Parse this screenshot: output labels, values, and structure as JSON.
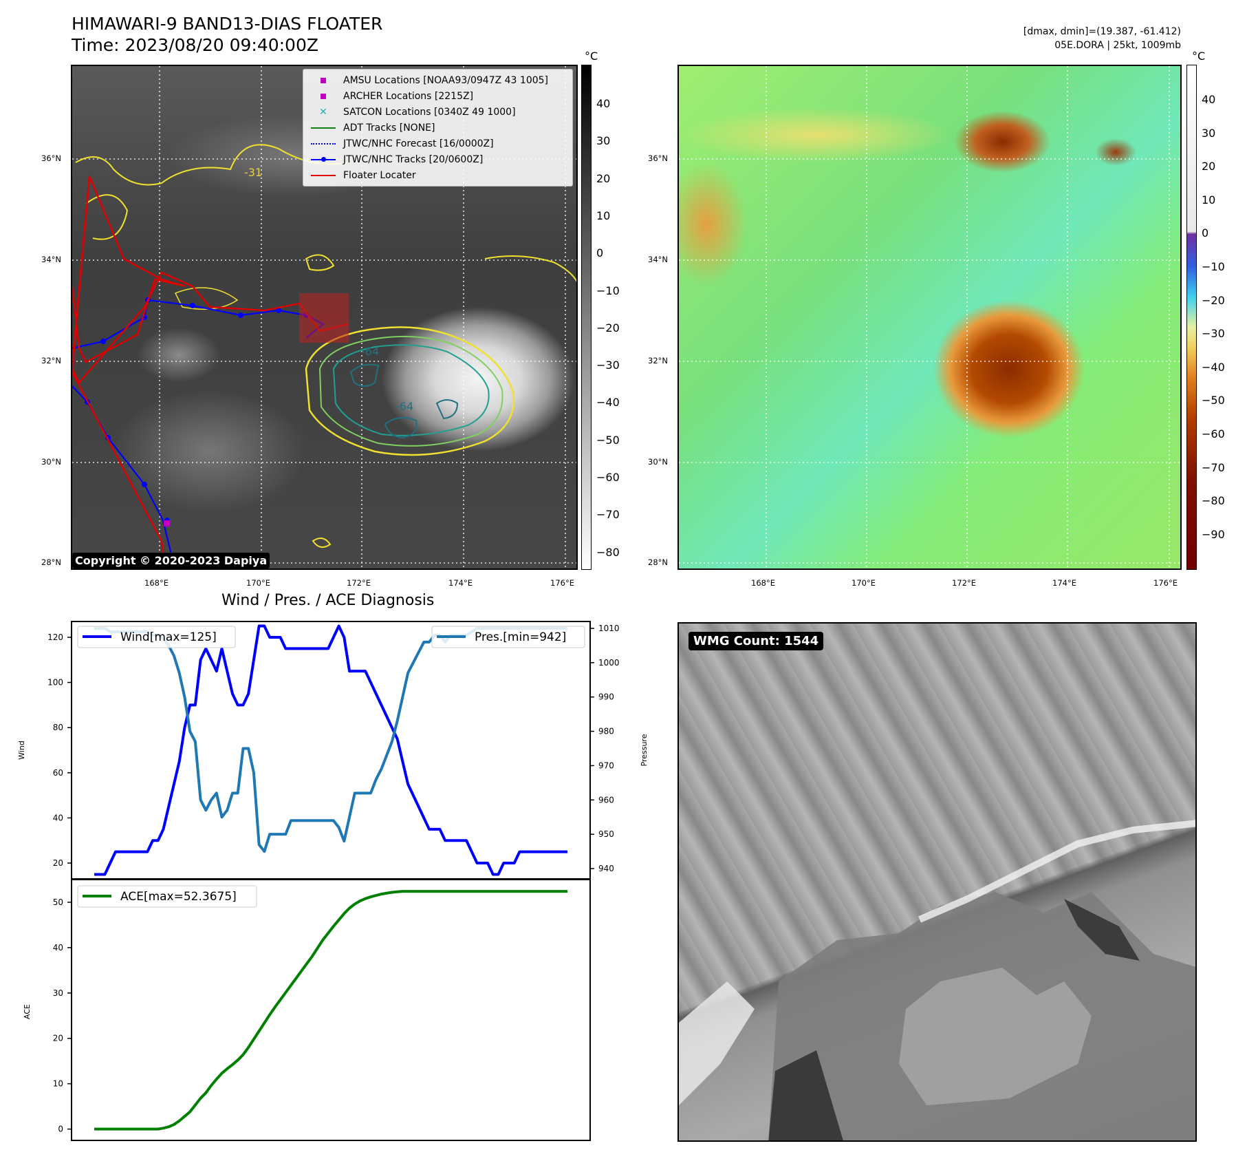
{
  "header": {
    "title": "HIMAWARI-9 BAND13-DIAS FLOATER",
    "time": "Time: 2023/08/20 09:40:00Z",
    "stats": "[dmax, dmin]=(19.387, -61.412)",
    "storm": "05E.DORA | 25kt, 1009mb"
  },
  "maps": {
    "lon_ticks": [
      "168°E",
      "170°E",
      "172°E",
      "174°E",
      "176°E"
    ],
    "lat_ticks": [
      "36°N",
      "34°N",
      "32°N",
      "30°N",
      "28°N"
    ],
    "copyright": "Copyright © 2020-2023 Dapiya",
    "legend": [
      {
        "label": "AMSU Locations [NOAA93/0947Z 43 1005]",
        "color": "#c000c0",
        "marker": "square"
      },
      {
        "label": "ARCHER Locations [2215Z]",
        "color": "#c000c0",
        "marker": "square"
      },
      {
        "label": "SATCON Locations [0340Z 49 1000]",
        "color": "#20b0b0",
        "marker": "x"
      },
      {
        "label": "ADT Tracks [NONE]",
        "color": "#108010",
        "marker": "line"
      },
      {
        "label": "JTWC/NHC Forecast [16/0000Z]",
        "color": "#0000ff",
        "marker": "dotted"
      },
      {
        "label": "JTWC/NHC Tracks [20/0600Z]",
        "color": "#0000ff",
        "marker": "line-dot"
      },
      {
        "label": "Floater Locater",
        "color": "#e00000",
        "marker": "line"
      }
    ],
    "contour_labels": [
      "-31",
      "-31",
      "-31",
      "-64",
      "-64"
    ],
    "colorbar_gray": {
      "unit": "°C",
      "ticks": [
        "40",
        "30",
        "20",
        "10",
        "0",
        "−10",
        "−20",
        "−30",
        "−40",
        "−50",
        "−60",
        "−70",
        "−80"
      ]
    },
    "colorbar_color": {
      "unit": "°C",
      "ticks": [
        "40",
        "30",
        "20",
        "10",
        "0",
        "−10",
        "−20",
        "−30",
        "−40",
        "−50",
        "−60",
        "−70",
        "−80",
        "−90"
      ]
    }
  },
  "diagnosis": {
    "title": "Wind / Pres. / ACE Diagnosis",
    "wmg_count": "WMG Count: 1544"
  },
  "chart_data": [
    {
      "type": "line",
      "title": "Wind / Pres. / ACE Diagnosis",
      "ylabel": "Wind",
      "y2label": "Pressure",
      "ylim": [
        13,
        127
      ],
      "y2lim": [
        937,
        1012
      ],
      "yticks": [
        "20",
        "40",
        "60",
        "80",
        "100",
        "120"
      ],
      "y2ticks": [
        "940",
        "950",
        "960",
        "970",
        "980",
        "990",
        "1000",
        "1010"
      ],
      "series": [
        {
          "name": "Wind[max=125]",
          "axis": "left",
          "color": "#0000ff",
          "values": [
            15,
            15,
            15,
            20,
            25,
            25,
            25,
            25,
            25,
            25,
            25,
            30,
            30,
            35,
            45,
            55,
            65,
            80,
            90,
            90,
            110,
            115,
            110,
            105,
            115,
            105,
            95,
            90,
            90,
            95,
            110,
            125,
            125,
            120,
            120,
            120,
            115,
            115,
            115,
            115,
            115,
            115,
            115,
            115,
            115,
            120,
            125,
            120,
            105,
            105,
            105,
            105,
            100,
            95,
            90,
            85,
            80,
            75,
            65,
            55,
            50,
            45,
            40,
            35,
            35,
            35,
            30,
            30,
            30,
            30,
            30,
            25,
            20,
            20,
            20,
            15,
            15,
            20,
            20,
            20,
            25,
            25,
            25,
            25,
            25,
            25,
            25,
            25,
            25,
            25
          ]
        },
        {
          "name": "Pres.[min=942]",
          "axis": "right",
          "color": "#1f77b4",
          "values": [
            1010,
            1010,
            1010,
            1009,
            1009,
            1009,
            1009,
            1009,
            1009,
            1009,
            1009,
            1008,
            1008,
            1007,
            1005,
            1002,
            997,
            990,
            980,
            977,
            960,
            957,
            960,
            962,
            955,
            957,
            962,
            962,
            975,
            975,
            968,
            947,
            945,
            950,
            950,
            950,
            950,
            954,
            954,
            954,
            954,
            954,
            954,
            954,
            954,
            954,
            952,
            948,
            955,
            962,
            962,
            962,
            962,
            966,
            969,
            973,
            977,
            983,
            990,
            997,
            1000,
            1003,
            1006,
            1006,
            1008,
            1008,
            1006,
            1008,
            1008,
            1008,
            1008,
            1009,
            1010,
            1010,
            1010,
            1010,
            1010,
            1010,
            1010,
            1010,
            1010,
            1010,
            1010,
            1010,
            1010,
            1010,
            1010,
            1010,
            1010,
            1010
          ]
        }
      ]
    },
    {
      "type": "line",
      "ylabel": "ACE",
      "ylim": [
        -2.5,
        55
      ],
      "yticks": [
        "0",
        "10",
        "20",
        "30",
        "40",
        "50"
      ],
      "series": [
        {
          "name": "ACE[max=52.3675]",
          "color": "#008000",
          "values": [
            0,
            0,
            0,
            0,
            0,
            0,
            0,
            0,
            0,
            0,
            0,
            0,
            0,
            0.2,
            0.5,
            1.0,
            1.8,
            2.8,
            3.8,
            5.3,
            6.8,
            8.0,
            9.6,
            11.0,
            12.3,
            13.3,
            14.2,
            15.2,
            16.4,
            18.0,
            19.8,
            21.6,
            23.4,
            25.2,
            26.9,
            28.5,
            30.1,
            31.7,
            33.3,
            34.9,
            36.5,
            38.1,
            39.9,
            41.7,
            43.2,
            44.7,
            46.1,
            47.5,
            48.7,
            49.6,
            50.3,
            50.8,
            51.2,
            51.5,
            51.8,
            52.0,
            52.2,
            52.3,
            52.4,
            52.4,
            52.4,
            52.4,
            52.4,
            52.4,
            52.4,
            52.4,
            52.4,
            52.4,
            52.4,
            52.4,
            52.4,
            52.4,
            52.4,
            52.4,
            52.4,
            52.4,
            52.4,
            52.4,
            52.4,
            52.4,
            52.4,
            52.4,
            52.4,
            52.4,
            52.4,
            52.4,
            52.4,
            52.4,
            52.4,
            52.4
          ]
        }
      ]
    }
  ]
}
